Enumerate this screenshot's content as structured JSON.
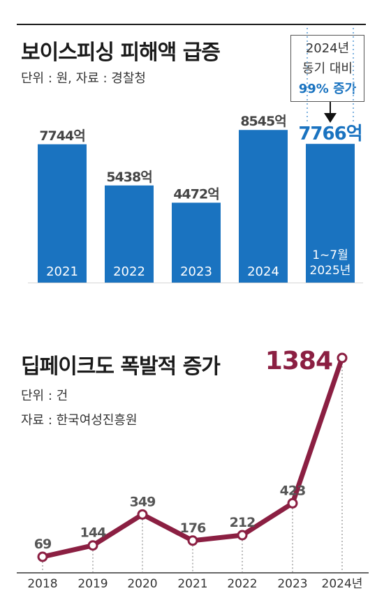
{
  "charts": [
    {
      "title": "보이스피싱 피해액 급증",
      "note": "단위 : 원, 자료 : 경찰청",
      "callout": {
        "line1": "2024년",
        "line2": "동기 대비",
        "line3": "99% 증가"
      },
      "colors": {
        "bar": "#1a73c0",
        "highlight_label": "#1a73c0",
        "label": "#444444"
      }
    },
    {
      "title": "딥페이크도 폭발적 증가",
      "note1": "단위 : 건",
      "note2": "자료 : 한국여성진흥원",
      "colors": {
        "line": "#8b1f42",
        "highlight_label": "#8b1f42",
        "label": "#555555"
      }
    }
  ],
  "chart_data": [
    {
      "type": "bar",
      "categories": [
        "2021",
        "2022",
        "2023",
        "2024",
        "1~7월 2025년"
      ],
      "values": [
        7744,
        5438,
        4472,
        8545,
        7766
      ],
      "data_labels": [
        "7744억",
        "5438억",
        "4472억",
        "8545억",
        "7766억"
      ],
      "unit": "억",
      "ylim": [
        0,
        10000
      ],
      "highlight": "1~7월 2025년"
    },
    {
      "type": "line",
      "x": [
        "2018",
        "2019",
        "2020",
        "2021",
        "2022",
        "2023",
        "2024년"
      ],
      "values": [
        69,
        144,
        349,
        176,
        212,
        423,
        1384
      ],
      "data_labels": [
        "69",
        "144",
        "349",
        "176",
        "212",
        "423",
        "1384"
      ],
      "ylim": [
        0,
        1400
      ],
      "highlight": "2024년"
    }
  ]
}
